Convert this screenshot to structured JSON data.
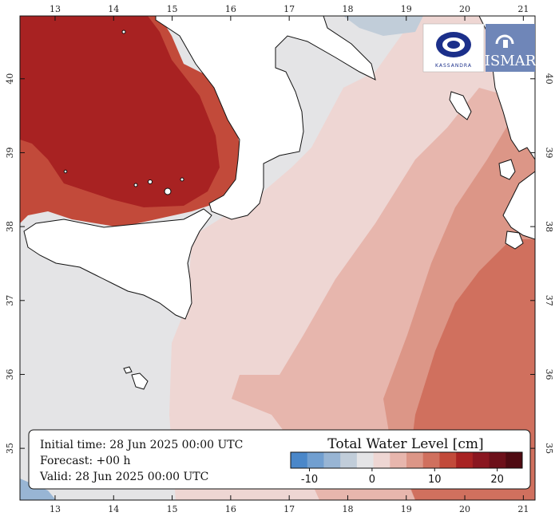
{
  "info": {
    "initial_time": "Initial time: 28 Jun 2025 00:00 UTC",
    "forecast": "Forecast: +00 h",
    "valid": "Valid: 28 Jun 2025 00:00 UTC"
  },
  "legend": {
    "title": "Total Water Level [cm]",
    "tick_labels": [
      "-10",
      "0",
      "10",
      "20"
    ],
    "tick_values": [
      -10,
      0,
      10,
      20
    ],
    "range": [
      -13,
      24
    ],
    "step": 2.5,
    "colors": [
      "#4a87c9",
      "#719fd0",
      "#98b5d4",
      "#c1cdd9",
      "#e4e4e6",
      "#eed6d3",
      "#e7b6ad",
      "#dc9687",
      "#d0705e",
      "#c24a3a",
      "#a82222",
      "#8a1620",
      "#6d101a",
      "#4f0a12"
    ]
  },
  "axes": {
    "lon_labels": [
      "13",
      "14",
      "15",
      "16",
      "17",
      "18",
      "19",
      "20",
      "21"
    ],
    "lon_values": [
      13,
      14,
      15,
      16,
      17,
      18,
      19,
      20,
      21
    ],
    "lat_labels": [
      "35",
      "36",
      "37",
      "38",
      "39",
      "40"
    ],
    "lat_values": [
      35,
      36,
      37,
      38,
      39,
      40
    ],
    "lon_range": [
      12.4,
      21.2
    ],
    "lat_range": [
      34.3,
      40.85
    ]
  },
  "logos": {
    "kassandra_text": "KASSANDRA",
    "ismar_text": "ISMAR"
  }
}
